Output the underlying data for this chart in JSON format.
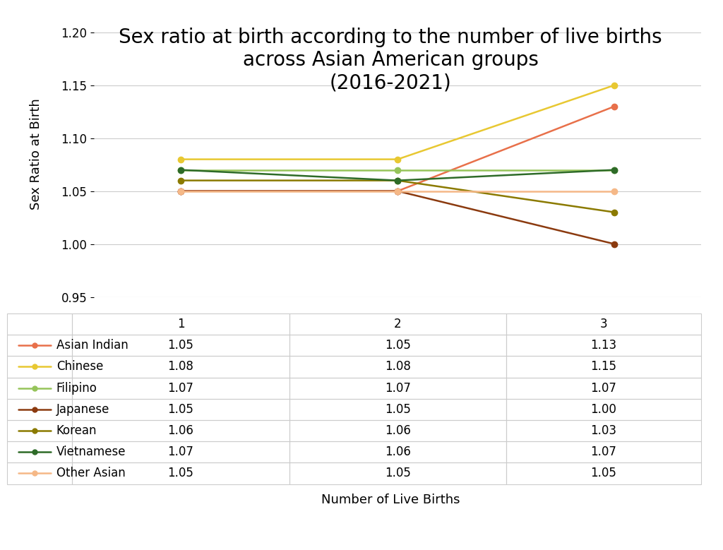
{
  "title": "Sex ratio at birth according to the number of live births\nacross Asian American groups\n(2016-2021)",
  "xlabel": "Number of Live Births",
  "ylabel": "Sex Ratio at Birth",
  "x_values": [
    1,
    2,
    3
  ],
  "series": [
    {
      "name": "Asian Indian",
      "values": [
        1.05,
        1.05,
        1.13
      ],
      "color": "#E8704A",
      "marker": "o"
    },
    {
      "name": "Chinese",
      "values": [
        1.08,
        1.08,
        1.15
      ],
      "color": "#E8C832",
      "marker": "o"
    },
    {
      "name": "Filipino",
      "values": [
        1.07,
        1.07,
        1.07
      ],
      "color": "#96C45A",
      "marker": "o"
    },
    {
      "name": "Japanese",
      "values": [
        1.05,
        1.05,
        1.0
      ],
      "color": "#8B3A0F",
      "marker": "o"
    },
    {
      "name": "Korean",
      "values": [
        1.06,
        1.06,
        1.03
      ],
      "color": "#8B7A00",
      "marker": "o"
    },
    {
      "name": "Vietnamese",
      "values": [
        1.07,
        1.06,
        1.07
      ],
      "color": "#2E6B28",
      "marker": "o"
    },
    {
      "name": "Other Asian",
      "values": [
        1.05,
        1.05,
        1.05
      ],
      "color": "#F5B887",
      "marker": "o"
    }
  ],
  "ylim": [
    0.95,
    1.22
  ],
  "yticks": [
    0.95,
    1.0,
    1.05,
    1.1,
    1.15,
    1.2
  ],
  "background_color": "#FFFFFF",
  "grid_color": "#CCCCCC",
  "title_fontsize": 20,
  "axis_label_fontsize": 13,
  "tick_fontsize": 12,
  "table_fontsize": 12,
  "legend_fontsize": 12
}
